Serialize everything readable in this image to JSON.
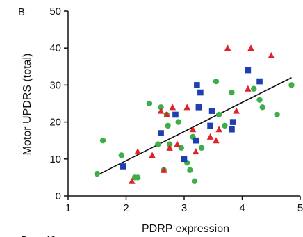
{
  "panel_letter": "B",
  "clipped_text": [
    "D",
    "40"
  ],
  "chart_data": {
    "type": "scatter",
    "title": "",
    "xlabel": "PDRP expression",
    "ylabel": "Motor UPDRS (total)",
    "xlim": [
      1,
      5
    ],
    "ylim": [
      0,
      50
    ],
    "x_ticks": [
      "1",
      "2",
      "3",
      "4",
      "5"
    ],
    "y_ticks": [
      "0",
      "10",
      "20",
      "30",
      "40",
      "50"
    ],
    "grid": false,
    "legend": "none",
    "series": [
      {
        "color": "#3fae49",
        "marker": "circle",
        "points": [
          [
            1.5,
            6
          ],
          [
            1.6,
            15
          ],
          [
            1.92,
            11
          ],
          [
            2.15,
            5
          ],
          [
            2.2,
            5
          ],
          [
            2.4,
            25
          ],
          [
            2.55,
            14
          ],
          [
            2.6,
            24
          ],
          [
            2.65,
            7
          ],
          [
            2.7,
            22
          ],
          [
            2.72,
            19
          ],
          [
            2.75,
            14
          ],
          [
            2.9,
            20
          ],
          [
            2.95,
            13
          ],
          [
            3.05,
            9
          ],
          [
            3.1,
            7
          ],
          [
            3.15,
            16
          ],
          [
            3.18,
            4
          ],
          [
            3.3,
            13
          ],
          [
            3.55,
            31
          ],
          [
            3.6,
            22
          ],
          [
            3.7,
            19
          ],
          [
            3.82,
            28
          ],
          [
            4.2,
            29
          ],
          [
            4.3,
            26
          ],
          [
            4.35,
            24
          ],
          [
            4.6,
            22
          ],
          [
            4.85,
            30
          ]
        ]
      },
      {
        "color": "#1f3fb0",
        "marker": "square",
        "points": [
          [
            1.95,
            8
          ],
          [
            2.6,
            17
          ],
          [
            2.85,
            22
          ],
          [
            3.0,
            10
          ],
          [
            3.2,
            15
          ],
          [
            3.22,
            30
          ],
          [
            3.25,
            24
          ],
          [
            3.28,
            28
          ],
          [
            3.45,
            19
          ],
          [
            3.48,
            23
          ],
          [
            3.82,
            18
          ],
          [
            3.84,
            20
          ],
          [
            4.1,
            34
          ],
          [
            4.3,
            31
          ]
        ]
      },
      {
        "color": "#e0232a",
        "marker": "triangle",
        "points": [
          [
            2.1,
            4
          ],
          [
            2.2,
            12
          ],
          [
            2.45,
            11
          ],
          [
            2.6,
            23
          ],
          [
            2.65,
            7
          ],
          [
            2.7,
            22
          ],
          [
            2.75,
            13
          ],
          [
            2.8,
            24
          ],
          [
            2.88,
            14
          ],
          [
            3.05,
            24
          ],
          [
            3.15,
            18
          ],
          [
            3.2,
            12
          ],
          [
            3.45,
            16
          ],
          [
            3.55,
            15
          ],
          [
            3.6,
            18
          ],
          [
            3.75,
            40
          ],
          [
            3.9,
            23
          ],
          [
            4.1,
            29
          ],
          [
            4.15,
            40
          ],
          [
            4.5,
            38
          ]
        ]
      }
    ],
    "trend_line": {
      "color": "#111111",
      "points": [
        [
          1.55,
          6
        ],
        [
          4.85,
          32
        ]
      ]
    }
  }
}
